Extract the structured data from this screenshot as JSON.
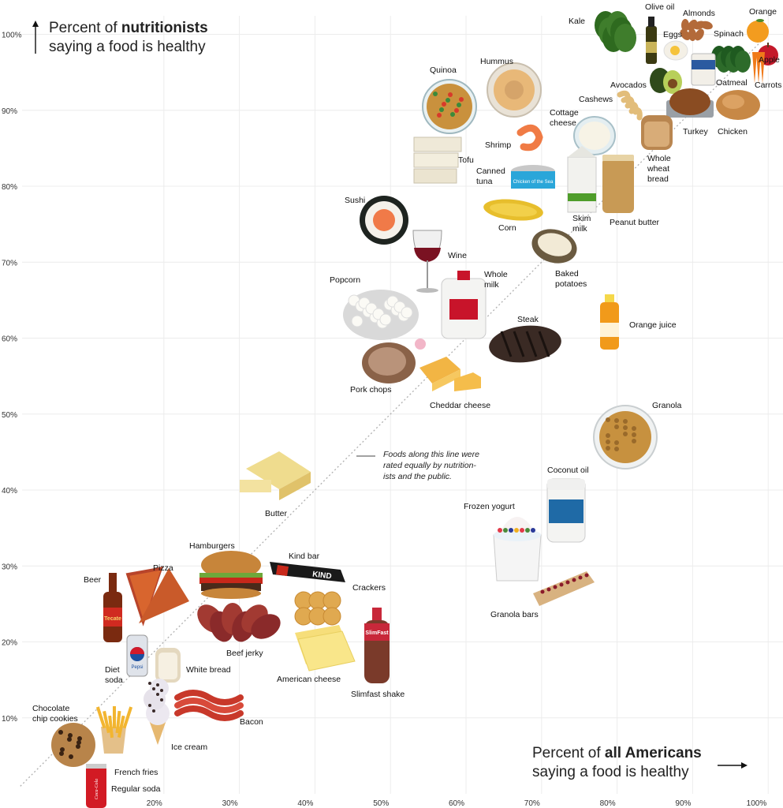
{
  "y_title": {
    "prefix": "Percent of ",
    "bold": "nutritionists",
    "line2": "saying a food is healthy"
  },
  "x_title": {
    "prefix": "Percent of ",
    "bold": "all Americans",
    "line2": "saying a food is healthy"
  },
  "annotation": [
    "Foods along this line were",
    "rated equally by nutrition-",
    "ists and the public."
  ],
  "chart_data": {
    "type": "scatter",
    "xlabel": "Percent of all Americans saying a food is healthy",
    "ylabel": "Percent of nutritionists saying a food is healthy",
    "xlim": [
      10,
      100
    ],
    "ylim": [
      0,
      100
    ],
    "x_ticks": [
      "20%",
      "30%",
      "40%",
      "50%",
      "60%",
      "70%",
      "80%",
      "90%",
      "100%"
    ],
    "y_ticks": [
      "10%",
      "20%",
      "30%",
      "40%",
      "50%",
      "60%",
      "70%",
      "80%",
      "90%",
      "100%"
    ],
    "reference_line": "x = y",
    "grid": true,
    "points": [
      {
        "name": "Kale",
        "x": 84,
        "y": 97
      },
      {
        "name": "Olive oil",
        "x": 87,
        "y": 98
      },
      {
        "name": "Almonds",
        "x": 89,
        "y": 98
      },
      {
        "name": "Orange",
        "x": 97,
        "y": 99
      },
      {
        "name": "Eggs",
        "x": 86,
        "y": 96
      },
      {
        "name": "Spinach",
        "x": 94,
        "y": 97
      },
      {
        "name": "Apple",
        "x": 98,
        "y": 97
      },
      {
        "name": "Oatmeal",
        "x": 91,
        "y": 94
      },
      {
        "name": "Carrots",
        "x": 99,
        "y": 95
      },
      {
        "name": "Avocados",
        "x": 84,
        "y": 93
      },
      {
        "name": "Cashews",
        "x": 82,
        "y": 89
      },
      {
        "name": "Turkey",
        "x": 87,
        "y": 90
      },
      {
        "name": "Chicken",
        "x": 93,
        "y": 90
      },
      {
        "name": "Quinoa",
        "x": 58,
        "y": 92
      },
      {
        "name": "Hummus",
        "x": 64,
        "y": 93
      },
      {
        "name": "Cottage cheese",
        "x": 76,
        "y": 87
      },
      {
        "name": "Shrimp",
        "x": 67,
        "y": 86
      },
      {
        "name": "Whole wheat bread",
        "x": 82,
        "y": 86
      },
      {
        "name": "Tofu",
        "x": 52,
        "y": 83
      },
      {
        "name": "Canned tuna",
        "x": 68,
        "y": 81
      },
      {
        "name": "Peanut butter",
        "x": 79,
        "y": 80
      },
      {
        "name": "Skim milk",
        "x": 74,
        "y": 79
      },
      {
        "name": "Sushi",
        "x": 47,
        "y": 76
      },
      {
        "name": "Corn",
        "x": 65,
        "y": 76
      },
      {
        "name": "Wine",
        "x": 53,
        "y": 72
      },
      {
        "name": "Baked potatoes",
        "x": 70,
        "y": 72
      },
      {
        "name": "Popcorn",
        "x": 48,
        "y": 64
      },
      {
        "name": "Whole milk",
        "x": 59,
        "y": 64
      },
      {
        "name": "Steak",
        "x": 66,
        "y": 60
      },
      {
        "name": "Orange juice",
        "x": 78,
        "y": 61
      },
      {
        "name": "Pork chops",
        "x": 47,
        "y": 56
      },
      {
        "name": "Cheddar cheese",
        "x": 55,
        "y": 54
      },
      {
        "name": "Granola",
        "x": 80,
        "y": 48
      },
      {
        "name": "Butter",
        "x": 36,
        "y": 41
      },
      {
        "name": "Coconut oil",
        "x": 72,
        "y": 38
      },
      {
        "name": "Frozen yogurt",
        "x": 66,
        "y": 32
      },
      {
        "name": "Kind bar",
        "x": 39,
        "y": 31
      },
      {
        "name": "Hamburgers",
        "x": 29,
        "y": 30
      },
      {
        "name": "Pizza",
        "x": 21,
        "y": 26
      },
      {
        "name": "Beer",
        "x": 13,
        "y": 25
      },
      {
        "name": "Crackers",
        "x": 41,
        "y": 26
      },
      {
        "name": "Granola bars",
        "x": 71,
        "y": 27
      },
      {
        "name": "Beef jerky",
        "x": 29,
        "y": 23
      },
      {
        "name": "Diet soda",
        "x": 16,
        "y": 19
      },
      {
        "name": "White bread",
        "x": 20,
        "y": 18
      },
      {
        "name": "American cheese",
        "x": 40,
        "y": 19
      },
      {
        "name": "Slimfast shake",
        "x": 45,
        "y": 17
      },
      {
        "name": "Bacon",
        "x": 25,
        "y": 12
      },
      {
        "name": "Chocolate chip cookies",
        "x": 9,
        "y": 9
      },
      {
        "name": "Ice cream",
        "x": 18,
        "y": 9
      },
      {
        "name": "French fries",
        "x": 13,
        "y": 8
      },
      {
        "name": "Regular soda",
        "x": 12,
        "y": 3
      }
    ]
  },
  "labels": [
    {
      "text": "Kale"
    },
    {
      "text": "Olive oil"
    },
    {
      "text": "Almonds"
    },
    {
      "text": "Orange"
    },
    {
      "text": "Eggs"
    },
    {
      "text": "Spinach"
    },
    {
      "text": "Apple"
    },
    {
      "text": "Oatmeal"
    },
    {
      "text": "Carrots"
    },
    {
      "text": "Avocados"
    },
    {
      "text": "Cashews"
    },
    {
      "text": "Turkey"
    },
    {
      "text": "Chicken"
    },
    {
      "text": "Quinoa"
    },
    {
      "text": "Hummus"
    },
    {
      "text": "Cottage\ncheese"
    },
    {
      "text": "Shrimp"
    },
    {
      "text": "Whole\nwheat\nbread"
    },
    {
      "text": "Tofu"
    },
    {
      "text": "Canned\ntuna"
    },
    {
      "text": "Peanut butter"
    },
    {
      "text": "Skim\nmilk"
    },
    {
      "text": "Sushi"
    },
    {
      "text": "Corn"
    },
    {
      "text": "Wine"
    },
    {
      "text": "Baked\npotatoes"
    },
    {
      "text": "Popcorn"
    },
    {
      "text": "Whole\nmilk"
    },
    {
      "text": "Steak"
    },
    {
      "text": "Orange juice"
    },
    {
      "text": "Pork chops"
    },
    {
      "text": "Cheddar cheese"
    },
    {
      "text": "Granola"
    },
    {
      "text": "Butter"
    },
    {
      "text": "Coconut oil"
    },
    {
      "text": "Frozen yogurt"
    },
    {
      "text": "Kind bar"
    },
    {
      "text": "Hamburgers"
    },
    {
      "text": "Pizza"
    },
    {
      "text": "Beer"
    },
    {
      "text": "Crackers"
    },
    {
      "text": "Granola bars"
    },
    {
      "text": "Beef jerky"
    },
    {
      "text": "Diet\nsoda"
    },
    {
      "text": "White bread"
    },
    {
      "text": "American cheese"
    },
    {
      "text": "Slimfast shake"
    },
    {
      "text": "Bacon"
    },
    {
      "text": "Chocolate\nchip cookies"
    },
    {
      "text": "Ice cream"
    },
    {
      "text": "French fries"
    },
    {
      "text": "Regular soda"
    }
  ],
  "package_text": {
    "tuna": "Chicken of the Sea",
    "beer": "Tecate",
    "soda": "Coca-Cola",
    "diet": "Pepsi",
    "kind": "KIND",
    "slimfast": "SlimFast"
  }
}
